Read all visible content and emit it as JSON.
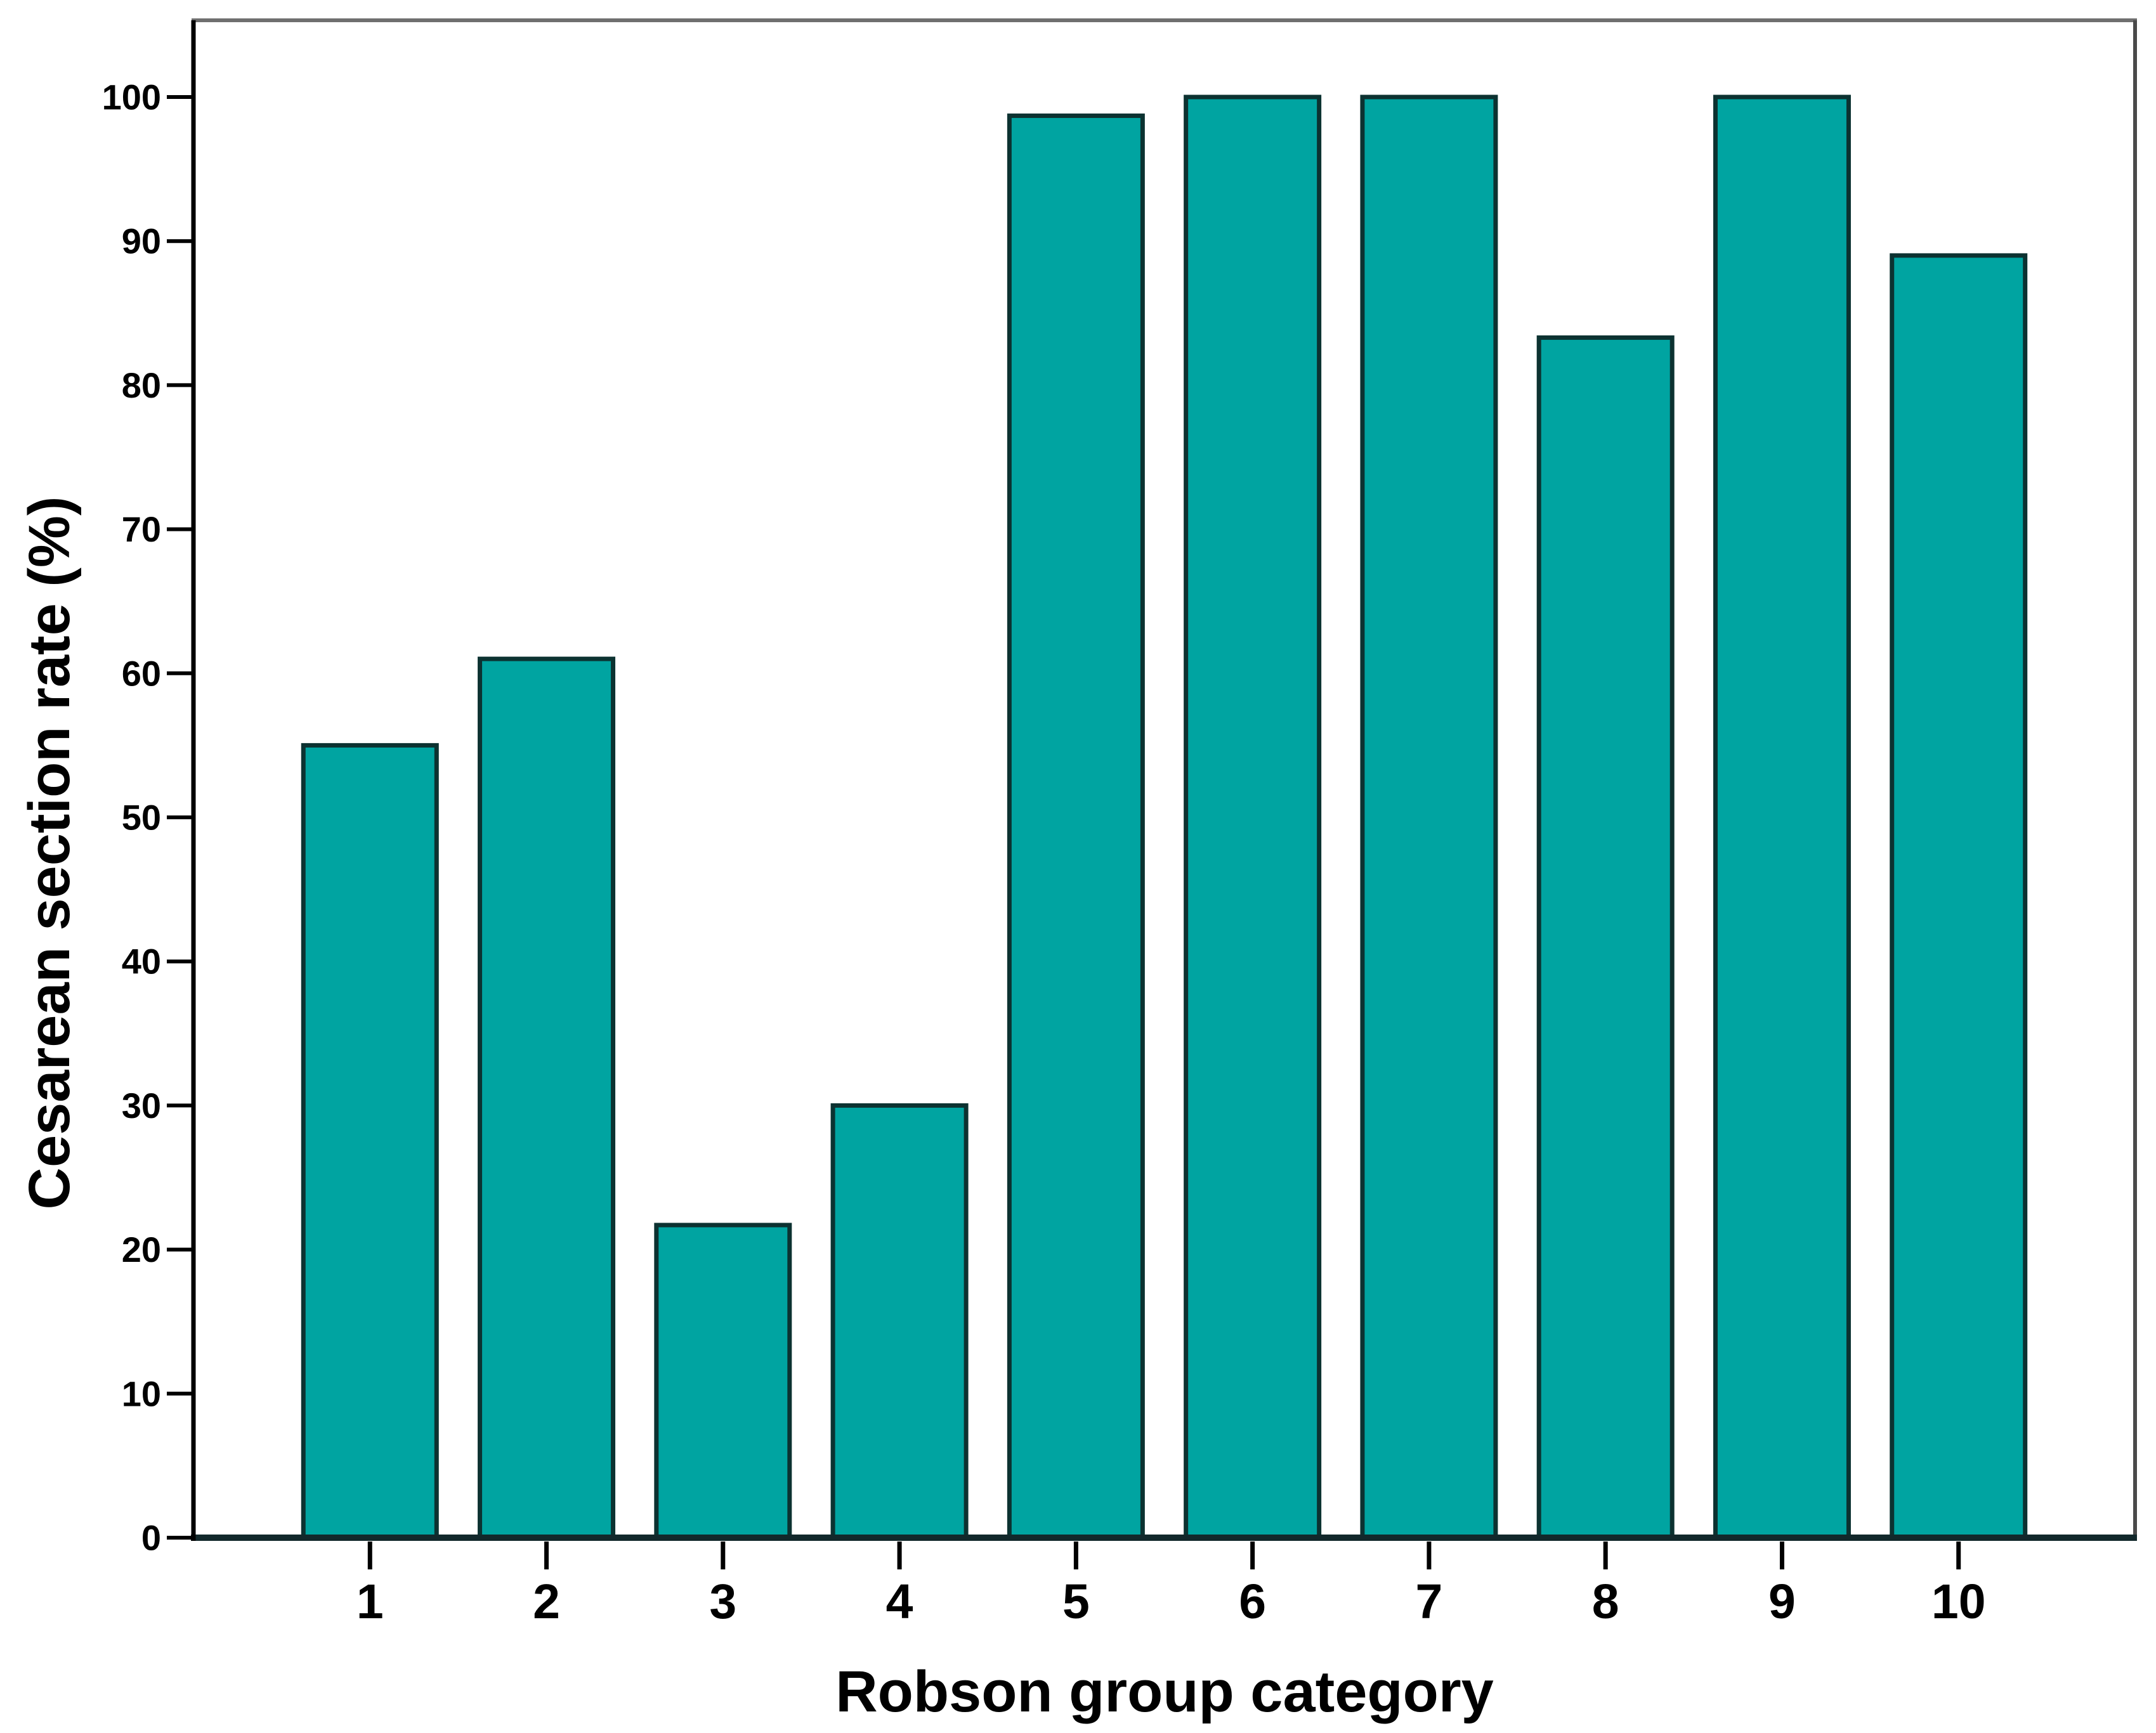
{
  "chart_data": {
    "type": "bar",
    "title": "",
    "xlabel": "Robson group category",
    "ylabel": "Cesarean section rate (%)",
    "categories": [
      "1",
      "2",
      "3",
      "4",
      "5",
      "6",
      "7",
      "8",
      "9",
      "10"
    ],
    "values": [
      55,
      61,
      21.7,
      30,
      98.7,
      100,
      100,
      83.3,
      100,
      89
    ],
    "ylim": [
      0,
      100
    ],
    "yticks": [
      0,
      10,
      20,
      30,
      40,
      50,
      60,
      70,
      80,
      90,
      100
    ],
    "grid": false,
    "legend": "none",
    "background_color": "#ffffff",
    "bar_color": "#00a4a1",
    "bar_border_color": "#0c3231",
    "y_axis_color": "#000000",
    "x_axis_color": "#12282b",
    "tick_color": "#000000",
    "frame_top_color": "#6f6f6f",
    "frame_right_color": "#4a4a4a",
    "text_color": "#000000"
  }
}
